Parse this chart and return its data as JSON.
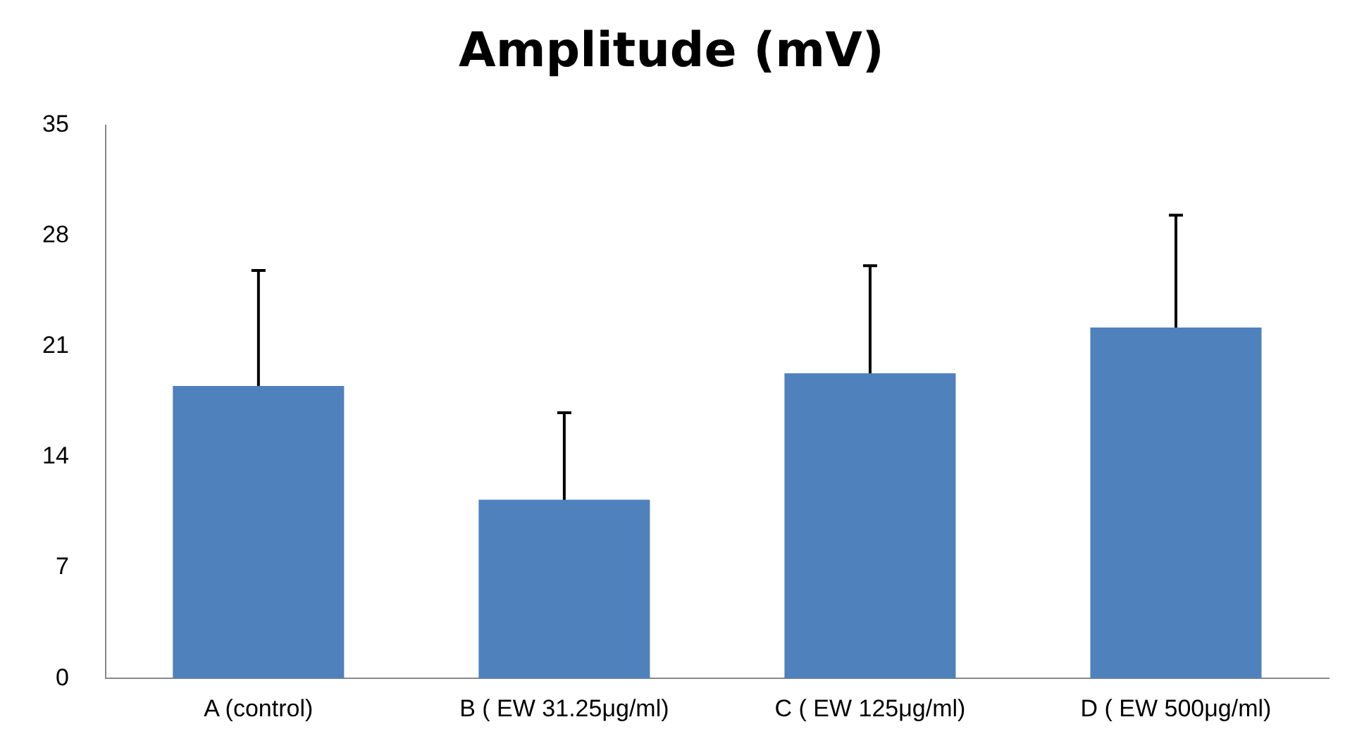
{
  "chart_data": {
    "type": "bar",
    "title": "Amplitude (mV)",
    "categories": [
      "A (control)",
      "B ( EW 31.25μg/ml)",
      "C ( EW 125μg/ml)",
      "D ( EW 500μg/ml)"
    ],
    "values": [
      18.5,
      11.3,
      19.3,
      22.2
    ],
    "errors": [
      7.3,
      5.5,
      6.8,
      7.1
    ],
    "color": "#4f81bd",
    "ylim": [
      0,
      35
    ],
    "yticks": [
      0,
      7,
      14,
      21,
      28,
      35
    ],
    "grid": false,
    "legend": false
  }
}
